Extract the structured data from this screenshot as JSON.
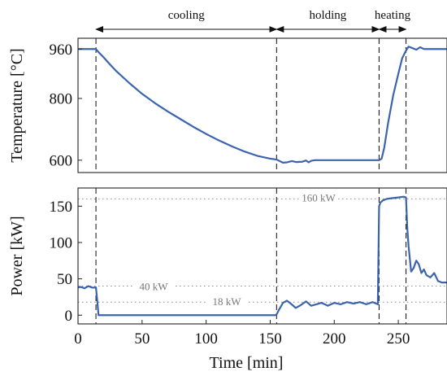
{
  "chart_data": [
    {
      "type": "line",
      "ylabel": "Temperature [°C]",
      "xlim": [
        0,
        288
      ],
      "ylim": [
        560,
        995
      ],
      "yticks": [
        600,
        800,
        960
      ],
      "phases": [
        {
          "label": "cooling",
          "from": 14,
          "to": 155
        },
        {
          "label": "holding",
          "from": 155,
          "to": 235
        },
        {
          "label": "heating",
          "from": 235,
          "to": 256
        }
      ],
      "phase_boundaries": [
        14,
        155,
        235,
        256
      ],
      "series": [
        {
          "color": "#3b64ad",
          "x": [
            0,
            14,
            16,
            20,
            25,
            30,
            40,
            50,
            60,
            70,
            80,
            90,
            100,
            110,
            120,
            130,
            140,
            150,
            155,
            158,
            160,
            163,
            167,
            170,
            175,
            178,
            180,
            182,
            185,
            190,
            200,
            210,
            220,
            230,
            235,
            237,
            239,
            242,
            246,
            250,
            253,
            256,
            258,
            261,
            264,
            267,
            270,
            280,
            288
          ],
          "y": [
            960,
            960,
            950,
            933,
            910,
            888,
            850,
            815,
            785,
            758,
            733,
            708,
            685,
            664,
            645,
            628,
            614,
            605,
            602,
            596,
            592,
            593,
            597,
            594,
            595,
            599,
            593,
            598,
            600,
            600,
            600,
            600,
            600,
            600,
            600,
            605,
            640,
            720,
            810,
            880,
            930,
            955,
            968,
            963,
            958,
            966,
            960,
            960,
            960
          ]
        }
      ]
    },
    {
      "type": "line",
      "xlabel": "Time [min]",
      "ylabel": "Power [kW]",
      "xlim": [
        0,
        288
      ],
      "ylim": [
        -12,
        175
      ],
      "xticks": [
        0,
        50,
        100,
        150,
        200,
        250
      ],
      "yticks": [
        0,
        50,
        100,
        150
      ],
      "reference_lines": [
        {
          "value": 160,
          "label": "160 kW"
        },
        {
          "value": 40,
          "label": "40 kW"
        },
        {
          "value": 18,
          "label": "18 kW"
        }
      ],
      "phase_boundaries": [
        14,
        155,
        235,
        256
      ],
      "series": [
        {
          "color": "#3b64ad",
          "x": [
            0,
            2,
            5,
            8,
            11,
            14,
            15,
            16,
            20,
            60,
            100,
            140,
            154,
            155,
            157,
            160,
            163,
            166,
            170,
            174,
            178,
            182,
            186,
            190,
            195,
            200,
            205,
            210,
            215,
            220,
            225,
            230,
            234,
            235,
            236,
            238,
            241,
            245,
            250,
            254,
            256,
            257,
            258,
            260,
            262,
            264,
            266,
            268,
            270,
            272,
            275,
            278,
            281,
            284,
            288
          ],
          "y": [
            38,
            39,
            37,
            40,
            38,
            38,
            20,
            0,
            0,
            0,
            0,
            0,
            0,
            1,
            8,
            17,
            20,
            16,
            10,
            14,
            19,
            13,
            15,
            17,
            13,
            17,
            15,
            18,
            16,
            18,
            15,
            18,
            15,
            150,
            155,
            158,
            160,
            161,
            162,
            163,
            162,
            120,
            95,
            60,
            65,
            75,
            70,
            58,
            63,
            55,
            52,
            58,
            47,
            45,
            45
          ]
        }
      ]
    }
  ]
}
